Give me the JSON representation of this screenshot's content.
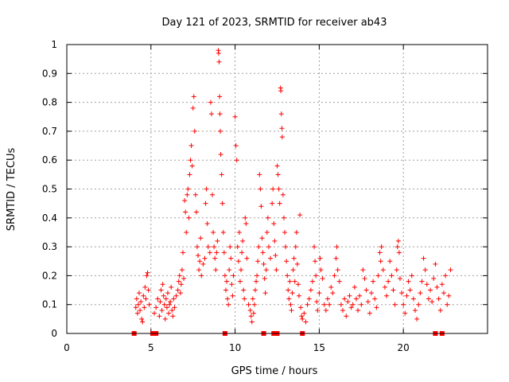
{
  "chart_data": {
    "type": "scatter",
    "title": "Day 121 of 2023, SRMTID for receiver ab43",
    "xlabel": "GPS time / hours",
    "ylabel": "SRMTID / TECUs",
    "xlim": [
      0,
      25
    ],
    "ylim": [
      0,
      1
    ],
    "x_ticks": [
      0,
      5,
      10,
      15,
      20
    ],
    "y_ticks": [
      0,
      0.1,
      0.2,
      0.3,
      0.4,
      0.5,
      0.6,
      0.7,
      0.8,
      0.9,
      1
    ],
    "x_tick_labels": [
      "0",
      "5",
      "10",
      "15",
      "20"
    ],
    "y_tick_labels": [
      "0",
      "0.1",
      "0.2",
      "0.3",
      "0.4",
      "0.5",
      "0.6",
      "0.7",
      "0.8",
      "0.9",
      "1"
    ],
    "grid": true,
    "marker": "+",
    "color": "#ff0000",
    "bottom_markers_x": [
      4.0,
      5.1,
      5.3,
      9.4,
      11.7,
      12.3,
      12.5,
      14.0,
      21.9,
      22.3
    ],
    "series": [
      {
        "name": "SRMTID",
        "points": [
          [
            4.1,
            0.09
          ],
          [
            4.15,
            0.12
          ],
          [
            4.2,
            0.07
          ],
          [
            4.25,
            0.1
          ],
          [
            4.3,
            0.14
          ],
          [
            4.35,
            0.08
          ],
          [
            4.4,
            0.11
          ],
          [
            4.45,
            0.05
          ],
          [
            4.5,
            0.04
          ],
          [
            4.55,
            0.13
          ],
          [
            4.6,
            0.09
          ],
          [
            4.65,
            0.16
          ],
          [
            4.7,
            0.12
          ],
          [
            4.75,
            0.2
          ],
          [
            4.8,
            0.21
          ],
          [
            4.85,
            0.15
          ],
          [
            4.9,
            0.1
          ],
          [
            5.2,
            0.07
          ],
          [
            5.3,
            0.09
          ],
          [
            5.4,
            0.12
          ],
          [
            5.5,
            0.06
          ],
          [
            5.55,
            0.11
          ],
          [
            5.6,
            0.15
          ],
          [
            5.65,
            0.08
          ],
          [
            5.7,
            0.17
          ],
          [
            5.75,
            0.13
          ],
          [
            5.8,
            0.1
          ],
          [
            5.85,
            0.05
          ],
          [
            5.9,
            0.12
          ],
          [
            5.95,
            0.09
          ],
          [
            6.0,
            0.14
          ],
          [
            6.05,
            0.07
          ],
          [
            6.1,
            0.1
          ],
          [
            6.15,
            0.11
          ],
          [
            6.2,
            0.16
          ],
          [
            6.25,
            0.08
          ],
          [
            6.3,
            0.06
          ],
          [
            6.35,
            0.12
          ],
          [
            6.4,
            0.09
          ],
          [
            6.5,
            0.13
          ],
          [
            6.6,
            0.15
          ],
          [
            6.65,
            0.18
          ],
          [
            6.7,
            0.2
          ],
          [
            6.75,
            0.14
          ],
          [
            6.8,
            0.17
          ],
          [
            6.85,
            0.22
          ],
          [
            6.9,
            0.28
          ],
          [
            6.95,
            0.19
          ],
          [
            7.0,
            0.46
          ],
          [
            7.05,
            0.42
          ],
          [
            7.1,
            0.35
          ],
          [
            7.15,
            0.48
          ],
          [
            7.2,
            0.5
          ],
          [
            7.25,
            0.4
          ],
          [
            7.3,
            0.55
          ],
          [
            7.35,
            0.6
          ],
          [
            7.4,
            0.65
          ],
          [
            7.45,
            0.58
          ],
          [
            7.5,
            0.78
          ],
          [
            7.55,
            0.82
          ],
          [
            7.6,
            0.7
          ],
          [
            7.65,
            0.48
          ],
          [
            7.7,
            0.42
          ],
          [
            7.75,
            0.3
          ],
          [
            7.8,
            0.27
          ],
          [
            7.85,
            0.22
          ],
          [
            7.9,
            0.25
          ],
          [
            7.95,
            0.33
          ],
          [
            8.0,
            0.2
          ],
          [
            8.1,
            0.24
          ],
          [
            8.2,
            0.26
          ],
          [
            8.25,
            0.45
          ],
          [
            8.3,
            0.5
          ],
          [
            8.35,
            0.38
          ],
          [
            8.4,
            0.3
          ],
          [
            8.5,
            0.28
          ],
          [
            8.55,
            0.8
          ],
          [
            8.6,
            0.76
          ],
          [
            8.65,
            0.48
          ],
          [
            8.7,
            0.35
          ],
          [
            8.75,
            0.3
          ],
          [
            8.8,
            0.26
          ],
          [
            8.85,
            0.22
          ],
          [
            8.9,
            0.28
          ],
          [
            8.95,
            0.32
          ],
          [
            9.0,
            0.98
          ],
          [
            9.02,
            0.97
          ],
          [
            9.05,
            0.94
          ],
          [
            9.08,
            0.82
          ],
          [
            9.1,
            0.76
          ],
          [
            9.12,
            0.7
          ],
          [
            9.15,
            0.62
          ],
          [
            9.2,
            0.55
          ],
          [
            9.25,
            0.45
          ],
          [
            9.3,
            0.35
          ],
          [
            9.35,
            0.28
          ],
          [
            9.4,
            0.2
          ],
          [
            9.45,
            0.15
          ],
          [
            9.5,
            0.18
          ],
          [
            9.55,
            0.12
          ],
          [
            9.6,
            0.1
          ],
          [
            9.65,
            0.22
          ],
          [
            9.7,
            0.3
          ],
          [
            9.75,
            0.26
          ],
          [
            9.8,
            0.17
          ],
          [
            9.85,
            0.13
          ],
          [
            9.9,
            0.2
          ],
          [
            10.0,
            0.75
          ],
          [
            10.05,
            0.65
          ],
          [
            10.1,
            0.6
          ],
          [
            10.15,
            0.3
          ],
          [
            10.2,
            0.25
          ],
          [
            10.25,
            0.35
          ],
          [
            10.3,
            0.18
          ],
          [
            10.35,
            0.22
          ],
          [
            10.4,
            0.28
          ],
          [
            10.45,
            0.32
          ],
          [
            10.5,
            0.15
          ],
          [
            10.55,
            0.12
          ],
          [
            10.6,
            0.4
          ],
          [
            10.65,
            0.38
          ],
          [
            10.7,
            0.26
          ],
          [
            10.8,
            0.1
          ],
          [
            10.9,
            0.08
          ],
          [
            10.95,
            0.06
          ],
          [
            11.0,
            0.04
          ],
          [
            11.05,
            0.12
          ],
          [
            11.1,
            0.07
          ],
          [
            11.15,
            0.1
          ],
          [
            11.2,
            0.15
          ],
          [
            11.25,
            0.18
          ],
          [
            11.3,
            0.2
          ],
          [
            11.35,
            0.25
          ],
          [
            11.4,
            0.3
          ],
          [
            11.45,
            0.55
          ],
          [
            11.5,
            0.5
          ],
          [
            11.55,
            0.44
          ],
          [
            11.6,
            0.33
          ],
          [
            11.65,
            0.28
          ],
          [
            11.7,
            0.24
          ],
          [
            11.75,
            0.19
          ],
          [
            11.8,
            0.14
          ],
          [
            11.85,
            0.22
          ],
          [
            11.9,
            0.35
          ],
          [
            11.95,
            0.4
          ],
          [
            12.0,
            0.3
          ],
          [
            12.1,
            0.26
          ],
          [
            12.2,
            0.45
          ],
          [
            12.25,
            0.5
          ],
          [
            12.3,
            0.38
          ],
          [
            12.35,
            0.32
          ],
          [
            12.4,
            0.27
          ],
          [
            12.45,
            0.22
          ],
          [
            12.5,
            0.58
          ],
          [
            12.55,
            0.55
          ],
          [
            12.6,
            0.5
          ],
          [
            12.65,
            0.45
          ],
          [
            12.7,
            0.85
          ],
          [
            12.72,
            0.84
          ],
          [
            12.75,
            0.76
          ],
          [
            12.78,
            0.71
          ],
          [
            12.8,
            0.68
          ],
          [
            12.85,
            0.48
          ],
          [
            12.9,
            0.4
          ],
          [
            12.95,
            0.35
          ],
          [
            13.0,
            0.3
          ],
          [
            13.05,
            0.25
          ],
          [
            13.1,
            0.2
          ],
          [
            13.15,
            0.15
          ],
          [
            13.2,
            0.12
          ],
          [
            13.25,
            0.18
          ],
          [
            13.3,
            0.1
          ],
          [
            13.35,
            0.08
          ],
          [
            13.4,
            0.14
          ],
          [
            13.45,
            0.22
          ],
          [
            13.5,
            0.26
          ],
          [
            13.55,
            0.18
          ],
          [
            13.6,
            0.3
          ],
          [
            13.65,
            0.35
          ],
          [
            13.7,
            0.24
          ],
          [
            13.75,
            0.17
          ],
          [
            13.8,
            0.13
          ],
          [
            13.85,
            0.41
          ],
          [
            13.9,
            0.09
          ],
          [
            13.95,
            0.06
          ],
          [
            14.0,
            0.05
          ],
          [
            14.1,
            0.07
          ],
          [
            14.2,
            0.04
          ],
          [
            14.3,
            0.1
          ],
          [
            14.4,
            0.12
          ],
          [
            14.5,
            0.15
          ],
          [
            14.6,
            0.18
          ],
          [
            14.7,
            0.3
          ],
          [
            14.75,
            0.25
          ],
          [
            14.8,
            0.2
          ],
          [
            14.85,
            0.11
          ],
          [
            14.9,
            0.08
          ],
          [
            15.0,
            0.14
          ],
          [
            15.05,
            0.26
          ],
          [
            15.1,
            0.22
          ],
          [
            15.2,
            0.19
          ],
          [
            15.3,
            0.1
          ],
          [
            15.4,
            0.08
          ],
          [
            15.5,
            0.12
          ],
          [
            15.6,
            0.1
          ],
          [
            15.7,
            0.16
          ],
          [
            15.8,
            0.14
          ],
          [
            15.9,
            0.2
          ],
          [
            16.0,
            0.26
          ],
          [
            16.05,
            0.3
          ],
          [
            16.1,
            0.22
          ],
          [
            16.2,
            0.18
          ],
          [
            16.3,
            0.1
          ],
          [
            16.4,
            0.08
          ],
          [
            16.5,
            0.12
          ],
          [
            16.6,
            0.06
          ],
          [
            16.7,
            0.11
          ],
          [
            16.8,
            0.13
          ],
          [
            16.9,
            0.09
          ],
          [
            17.0,
            0.1
          ],
          [
            17.1,
            0.16
          ],
          [
            17.2,
            0.12
          ],
          [
            17.3,
            0.08
          ],
          [
            17.4,
            0.13
          ],
          [
            17.5,
            0.1
          ],
          [
            17.6,
            0.22
          ],
          [
            17.7,
            0.19
          ],
          [
            17.8,
            0.15
          ],
          [
            17.9,
            0.11
          ],
          [
            18.0,
            0.07
          ],
          [
            18.1,
            0.14
          ],
          [
            18.2,
            0.18
          ],
          [
            18.3,
            0.12
          ],
          [
            18.4,
            0.09
          ],
          [
            18.5,
            0.2
          ],
          [
            18.6,
            0.28
          ],
          [
            18.65,
            0.25
          ],
          [
            18.7,
            0.3
          ],
          [
            18.8,
            0.22
          ],
          [
            18.9,
            0.16
          ],
          [
            19.0,
            0.13
          ],
          [
            19.1,
            0.18
          ],
          [
            19.2,
            0.25
          ],
          [
            19.3,
            0.2
          ],
          [
            19.4,
            0.15
          ],
          [
            19.5,
            0.1
          ],
          [
            19.6,
            0.22
          ],
          [
            19.65,
            0.3
          ],
          [
            19.7,
            0.32
          ],
          [
            19.75,
            0.28
          ],
          [
            19.8,
            0.19
          ],
          [
            19.9,
            0.14
          ],
          [
            20.0,
            0.1
          ],
          [
            20.1,
            0.07
          ],
          [
            20.2,
            0.13
          ],
          [
            20.3,
            0.18
          ],
          [
            20.4,
            0.15
          ],
          [
            20.5,
            0.2
          ],
          [
            20.6,
            0.12
          ],
          [
            20.7,
            0.08
          ],
          [
            20.8,
            0.05
          ],
          [
            20.9,
            0.1
          ],
          [
            21.0,
            0.14
          ],
          [
            21.1,
            0.18
          ],
          [
            21.2,
            0.26
          ],
          [
            21.3,
            0.22
          ],
          [
            21.4,
            0.17
          ],
          [
            21.5,
            0.12
          ],
          [
            21.6,
            0.15
          ],
          [
            21.7,
            0.11
          ],
          [
            21.8,
            0.19
          ],
          [
            21.9,
            0.24
          ],
          [
            22.0,
            0.16
          ],
          [
            22.1,
            0.12
          ],
          [
            22.2,
            0.08
          ],
          [
            22.3,
            0.17
          ],
          [
            22.4,
            0.14
          ],
          [
            22.5,
            0.2
          ],
          [
            22.6,
            0.1
          ],
          [
            22.7,
            0.13
          ],
          [
            22.8,
            0.22
          ]
        ]
      }
    ]
  }
}
